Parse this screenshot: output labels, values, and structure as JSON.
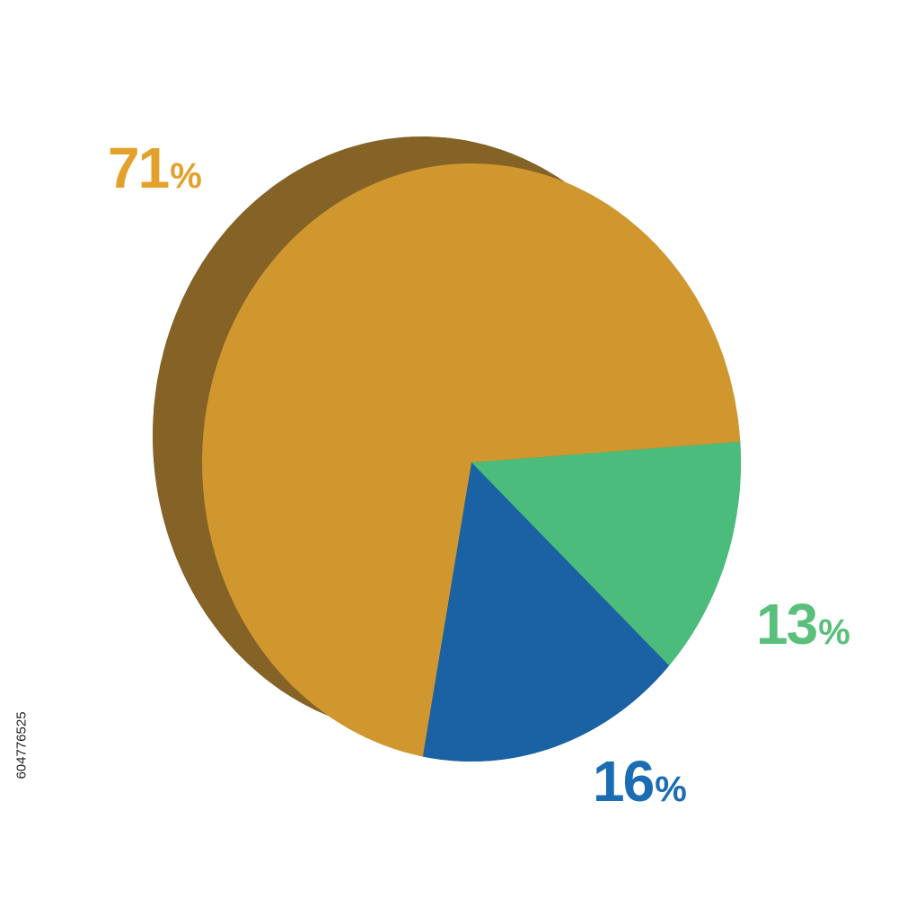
{
  "chart_data": {
    "type": "pie",
    "style": "3d",
    "title": "",
    "slices": [
      {
        "value": 71,
        "label": "71",
        "unit": "%",
        "color": "#d0972f",
        "side_color": "#856226"
      },
      {
        "value": 16,
        "label": "16",
        "unit": "%",
        "color": "#1a62a3",
        "side_color": "#144572"
      },
      {
        "value": 13,
        "label": "13",
        "unit": "%",
        "color": "#4bbc7b",
        "side_color": "#2f9a5a"
      }
    ],
    "label_colors": [
      "#e3a12c",
      "#1a6cb3",
      "#5bbf7c"
    ]
  },
  "stock_id": "604776525"
}
